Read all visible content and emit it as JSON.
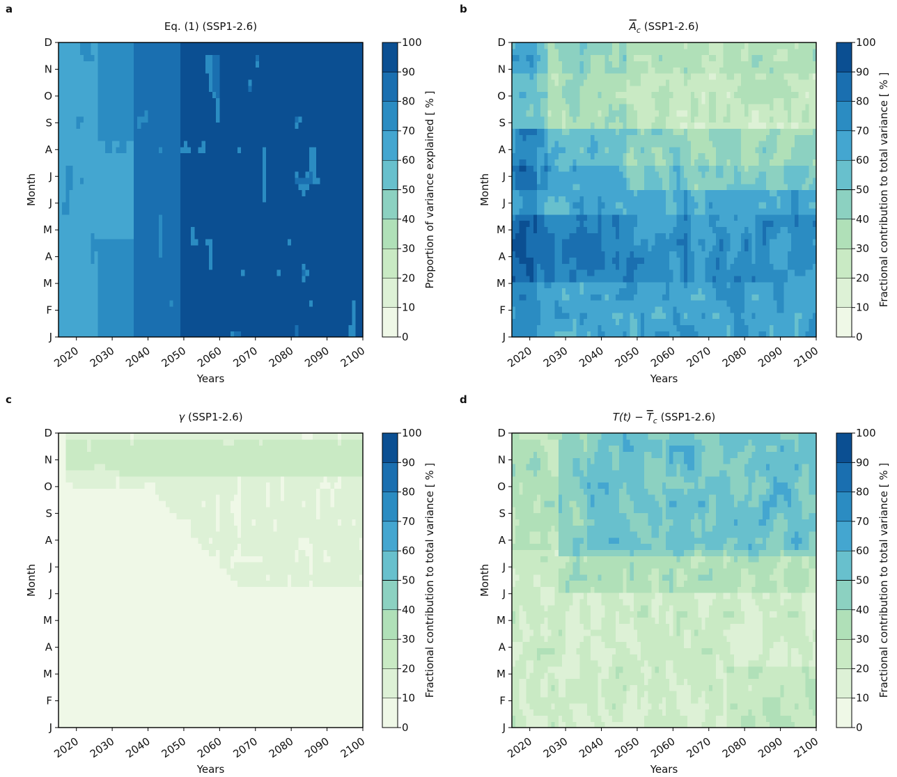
{
  "chart_data": [
    {
      "type": "heatmap",
      "panel_label": "a",
      "title": "Eq. (1) (SSP1-2.6)",
      "xlabel": "Years",
      "ylabel": "Month",
      "colorbar_label": "Proportion of variance explained [ % ]",
      "x_ticks": [
        "2020",
        "2030",
        "2040",
        "2050",
        "2060",
        "2070",
        "2080",
        "2090",
        "2100"
      ],
      "xlim": [
        2015,
        2100
      ],
      "months": [
        "J",
        "F",
        "M",
        "A",
        "M",
        "J",
        "J",
        "A",
        "S",
        "O",
        "N",
        "D"
      ],
      "colorbar_ticks": [
        "0",
        "10",
        "20",
        "30",
        "40",
        "50",
        "60",
        "70",
        "80",
        "90",
        "100"
      ],
      "levels": [
        0,
        10,
        20,
        30,
        40,
        50,
        60,
        70,
        80,
        90,
        100
      ],
      "typical_range": [
        70,
        100
      ]
    },
    {
      "type": "heatmap",
      "panel_label": "b",
      "title": "A_c (SSP1-2.6)",
      "title_symbol": "A",
      "title_subscript": "c",
      "title_rest": " (SSP1-2.6)",
      "xlabel": "Years",
      "ylabel": "Month",
      "colorbar_label": "Fractional contribution to total variance [ % ]",
      "x_ticks": [
        "2020",
        "2030",
        "2040",
        "2050",
        "2060",
        "2070",
        "2080",
        "2090",
        "2100"
      ],
      "xlim": [
        2015,
        2100
      ],
      "months": [
        "J",
        "F",
        "M",
        "A",
        "M",
        "J",
        "J",
        "A",
        "S",
        "O",
        "N",
        "D"
      ],
      "colorbar_ticks": [
        "0",
        "10",
        "20",
        "30",
        "40",
        "50",
        "60",
        "70",
        "80",
        "90",
        "100"
      ],
      "levels": [
        0,
        10,
        20,
        30,
        40,
        50,
        60,
        70,
        80,
        90,
        100
      ],
      "typical_range": [
        20,
        90
      ]
    },
    {
      "type": "heatmap",
      "panel_label": "c",
      "title": "γ (SSP1-2.6)",
      "title_symbol": "γ",
      "title_rest": " (SSP1-2.6)",
      "xlabel": "Years",
      "ylabel": "Month",
      "colorbar_label": "Fractional contribution to total variance [ % ]",
      "x_ticks": [
        "2020",
        "2030",
        "2040",
        "2050",
        "2060",
        "2070",
        "2080",
        "2090",
        "2100"
      ],
      "xlim": [
        2015,
        2100
      ],
      "months": [
        "J",
        "F",
        "M",
        "A",
        "M",
        "J",
        "J",
        "A",
        "S",
        "O",
        "N",
        "D"
      ],
      "colorbar_ticks": [
        "0",
        "10",
        "20",
        "30",
        "40",
        "50",
        "60",
        "70",
        "80",
        "90",
        "100"
      ],
      "levels": [
        0,
        10,
        20,
        30,
        40,
        50,
        60,
        70,
        80,
        90,
        100
      ],
      "typical_range": [
        0,
        30
      ]
    },
    {
      "type": "heatmap",
      "panel_label": "d",
      "title": "T(t) − T_c (SSP1-2.6)",
      "title_expr": "T(t) − ",
      "title_symbol": "T",
      "title_subscript": "c",
      "title_rest": " (SSP1-2.6)",
      "xlabel": "Years",
      "ylabel": "Month",
      "colorbar_label": "Fractional contribution to total variance [ % ]",
      "x_ticks": [
        "2020",
        "2030",
        "2040",
        "2050",
        "2060",
        "2070",
        "2080",
        "2090",
        "2100"
      ],
      "xlim": [
        2015,
        2100
      ],
      "months": [
        "J",
        "F",
        "M",
        "A",
        "M",
        "J",
        "J",
        "A",
        "S",
        "O",
        "N",
        "D"
      ],
      "colorbar_ticks": [
        "0",
        "10",
        "20",
        "30",
        "40",
        "50",
        "60",
        "70",
        "80",
        "90",
        "100"
      ],
      "levels": [
        0,
        10,
        20,
        30,
        40,
        50,
        60,
        70,
        80,
        90,
        100
      ],
      "typical_range": [
        10,
        60
      ]
    }
  ],
  "colormap": {
    "name": "GnBu",
    "bins": [
      "#f7fcf0",
      "#e0f3db",
      "#ccebc5",
      "#a8ddb5",
      "#7bccc4",
      "#4eb3d3",
      "#2b8cbe",
      "#0868ac",
      "#084081",
      "#0b4f92"
    ],
    "display": [
      "#eff8e7",
      "#ddf1d6",
      "#c9eac4",
      "#b0e0b8",
      "#8cd1c1",
      "#68c0cd",
      "#44a6d0",
      "#2b8cc2",
      "#1a6fb0",
      "#0b4f92"
    ]
  }
}
